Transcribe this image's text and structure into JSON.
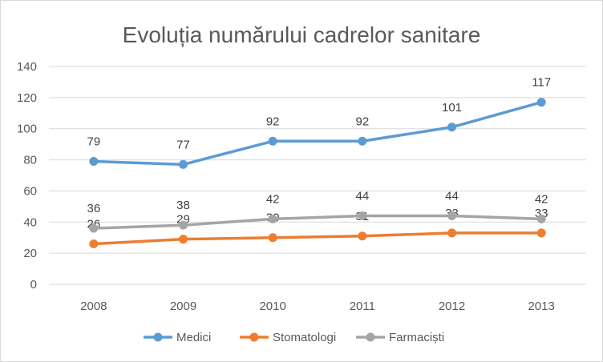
{
  "chart_data": {
    "type": "line",
    "title": "Evoluția numărului cadrelor sanitare",
    "xlabel": "",
    "ylabel": "",
    "x": [
      "2008",
      "2009",
      "2010",
      "2011",
      "2012",
      "2013"
    ],
    "ylim": [
      0,
      140
    ],
    "yticks": [
      0,
      20,
      40,
      60,
      80,
      100,
      120,
      140
    ],
    "grid": "horizontal",
    "legend_position": "bottom",
    "series": [
      {
        "name": "Medici",
        "color": "#5b9bd5",
        "values": [
          79,
          77,
          92,
          92,
          101,
          117
        ]
      },
      {
        "name": "Stomatologi",
        "color": "#ed7d31",
        "values": [
          26,
          29,
          30,
          31,
          33,
          33
        ]
      },
      {
        "name": "Farmaciști",
        "color": "#a5a5a5",
        "values": [
          36,
          38,
          42,
          44,
          44,
          42
        ]
      }
    ]
  }
}
